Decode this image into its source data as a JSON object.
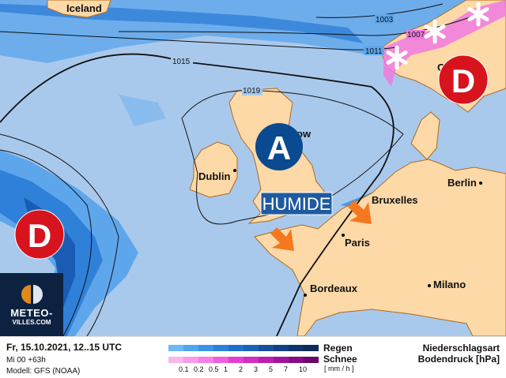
{
  "map": {
    "cities": [
      "Iceland",
      "Dublin",
      "ow",
      "Bruxelles",
      "Berlin",
      "Paris",
      "Bordeaux",
      "Milano",
      "O"
    ],
    "isobars": [
      "1003",
      "1007",
      "1011",
      "1015",
      "1019"
    ],
    "high_label": "A",
    "low_label": "D",
    "tag": "HUMIDE",
    "colors": {
      "sea": "#a9c9ec",
      "land": "#fdd9a8",
      "high": "#0a4a90",
      "low": "#d7141e",
      "arrow": "#f5781e",
      "tag": "#1f5aa0"
    }
  },
  "logo": {
    "line1": "METEO-",
    "line2": "VILLES.COM"
  },
  "footer": {
    "date": "Fr, 15.10.2021, 12..15 UTC",
    "run": "Mi 00 +63h",
    "model": "Modell: GFS (NOAA)",
    "rain_label": "Regen",
    "snow_label": "Schnee",
    "unit": "[ mm / h ]",
    "ticks": [
      "0.1",
      "0.2",
      "0.5",
      "1",
      "2",
      "3",
      "5",
      "7",
      "10"
    ],
    "title1": "Niederschlagsart",
    "title2": "Bodendruck [hPa]",
    "rain_colors": [
      "#6db8f5",
      "#4fa6ef",
      "#3a94e6",
      "#2a82da",
      "#1f70c9",
      "#1a62b4",
      "#174f9c",
      "#133f85",
      "#10336c",
      "#0e2a58"
    ],
    "snow_colors": [
      "#f9b6f0",
      "#f79cec",
      "#f47ee6",
      "#ee5ede",
      "#e43fd3",
      "#d42cc4",
      "#bd1eb0",
      "#a2149a",
      "#870d83",
      "#6c086c"
    ]
  }
}
